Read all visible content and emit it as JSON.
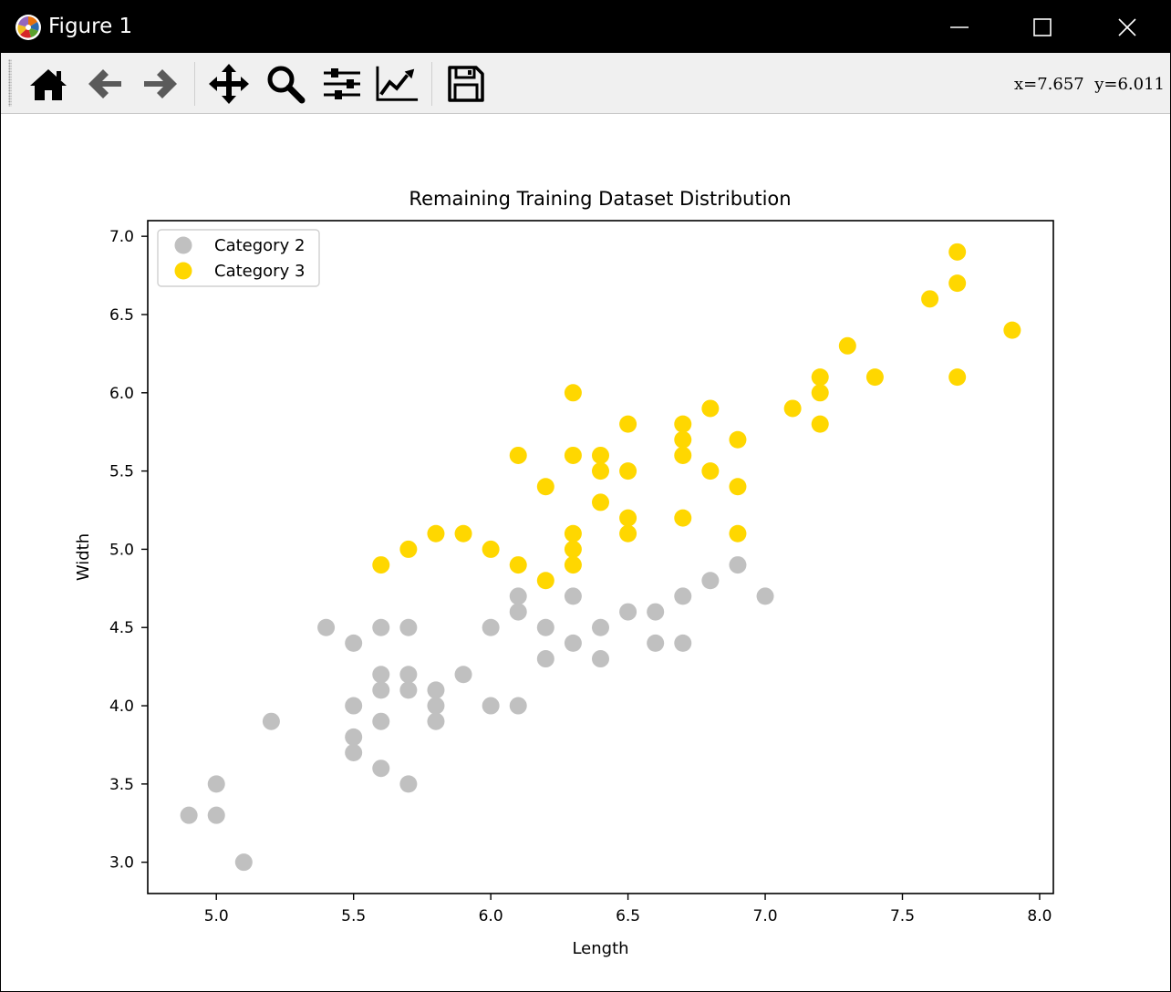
{
  "window": {
    "title": "Figure 1"
  },
  "toolbar": {
    "buttons": [
      {
        "icon": "home-icon"
      },
      {
        "icon": "back-arrow-icon"
      },
      {
        "icon": "forward-arrow-icon"
      },
      {
        "icon": "pan-icon"
      },
      {
        "icon": "zoom-icon"
      },
      {
        "icon": "configure-subplots-icon"
      },
      {
        "icon": "edit-axis-icon"
      },
      {
        "icon": "save-icon"
      }
    ],
    "coords": "x=7.657  y=6.011"
  },
  "chart_data": {
    "type": "scatter",
    "title": "Remaining Training Dataset Distribution",
    "xlabel": "Length",
    "ylabel": "Width",
    "xlim": [
      4.75,
      8.05
    ],
    "ylim": [
      2.8,
      7.1
    ],
    "xticks": [
      5.0,
      5.5,
      6.0,
      6.5,
      7.0,
      7.5,
      8.0
    ],
    "xtick_labels": [
      "5.0",
      "5.5",
      "6.0",
      "6.5",
      "7.0",
      "7.5",
      "8.0"
    ],
    "yticks": [
      3.0,
      3.5,
      4.0,
      4.5,
      5.0,
      5.5,
      6.0,
      6.5,
      7.0
    ],
    "ytick_labels": [
      "3.0",
      "3.5",
      "4.0",
      "4.5",
      "5.0",
      "5.5",
      "6.0",
      "6.5",
      "7.0"
    ],
    "grid": false,
    "legend": "upper-left",
    "series": [
      {
        "name": "Category 2",
        "color": "#c0c0c0",
        "points": [
          [
            4.9,
            3.3
          ],
          [
            5.0,
            3.5
          ],
          [
            5.0,
            3.3
          ],
          [
            5.1,
            3.0
          ],
          [
            5.2,
            3.9
          ],
          [
            5.4,
            4.5
          ],
          [
            5.5,
            4.4
          ],
          [
            5.5,
            4.0
          ],
          [
            5.5,
            3.8
          ],
          [
            5.5,
            3.7
          ],
          [
            5.6,
            4.5
          ],
          [
            5.6,
            4.2
          ],
          [
            5.6,
            4.1
          ],
          [
            5.6,
            3.9
          ],
          [
            5.6,
            3.6
          ],
          [
            5.7,
            4.5
          ],
          [
            5.7,
            4.2
          ],
          [
            5.7,
            4.1
          ],
          [
            5.7,
            3.5
          ],
          [
            5.8,
            4.1
          ],
          [
            5.8,
            4.0
          ],
          [
            5.8,
            3.9
          ],
          [
            5.9,
            4.2
          ],
          [
            6.0,
            4.5
          ],
          [
            6.0,
            4.0
          ],
          [
            6.1,
            4.7
          ],
          [
            6.1,
            4.6
          ],
          [
            6.1,
            4.0
          ],
          [
            6.2,
            4.5
          ],
          [
            6.2,
            4.3
          ],
          [
            6.3,
            4.7
          ],
          [
            6.3,
            4.4
          ],
          [
            6.4,
            4.5
          ],
          [
            6.4,
            4.3
          ],
          [
            6.5,
            4.6
          ],
          [
            6.6,
            4.6
          ],
          [
            6.6,
            4.4
          ],
          [
            6.7,
            4.7
          ],
          [
            6.7,
            4.4
          ],
          [
            6.8,
            4.8
          ],
          [
            6.9,
            4.9
          ],
          [
            7.0,
            4.7
          ]
        ]
      },
      {
        "name": "Category 3",
        "color": "#ffd700",
        "points": [
          [
            5.6,
            4.9
          ],
          [
            5.7,
            5.0
          ],
          [
            5.8,
            5.1
          ],
          [
            5.9,
            5.1
          ],
          [
            6.0,
            5.0
          ],
          [
            6.1,
            5.6
          ],
          [
            6.1,
            4.9
          ],
          [
            6.2,
            5.4
          ],
          [
            6.2,
            4.8
          ],
          [
            6.3,
            6.0
          ],
          [
            6.3,
            5.6
          ],
          [
            6.3,
            5.1
          ],
          [
            6.3,
            5.0
          ],
          [
            6.3,
            4.9
          ],
          [
            6.4,
            5.6
          ],
          [
            6.4,
            5.5
          ],
          [
            6.4,
            5.3
          ],
          [
            6.5,
            5.8
          ],
          [
            6.5,
            5.5
          ],
          [
            6.5,
            5.2
          ],
          [
            6.5,
            5.1
          ],
          [
            6.7,
            5.8
          ],
          [
            6.7,
            5.7
          ],
          [
            6.7,
            5.6
          ],
          [
            6.7,
            5.2
          ],
          [
            6.8,
            5.9
          ],
          [
            6.8,
            5.5
          ],
          [
            6.9,
            5.7
          ],
          [
            6.9,
            5.4
          ],
          [
            6.9,
            5.1
          ],
          [
            7.1,
            5.9
          ],
          [
            7.2,
            6.1
          ],
          [
            7.2,
            6.0
          ],
          [
            7.2,
            5.8
          ],
          [
            7.3,
            6.3
          ],
          [
            7.4,
            6.1
          ],
          [
            7.6,
            6.6
          ],
          [
            7.7,
            6.9
          ],
          [
            7.7,
            6.7
          ],
          [
            7.7,
            6.1
          ],
          [
            7.9,
            6.4
          ]
        ]
      }
    ]
  }
}
